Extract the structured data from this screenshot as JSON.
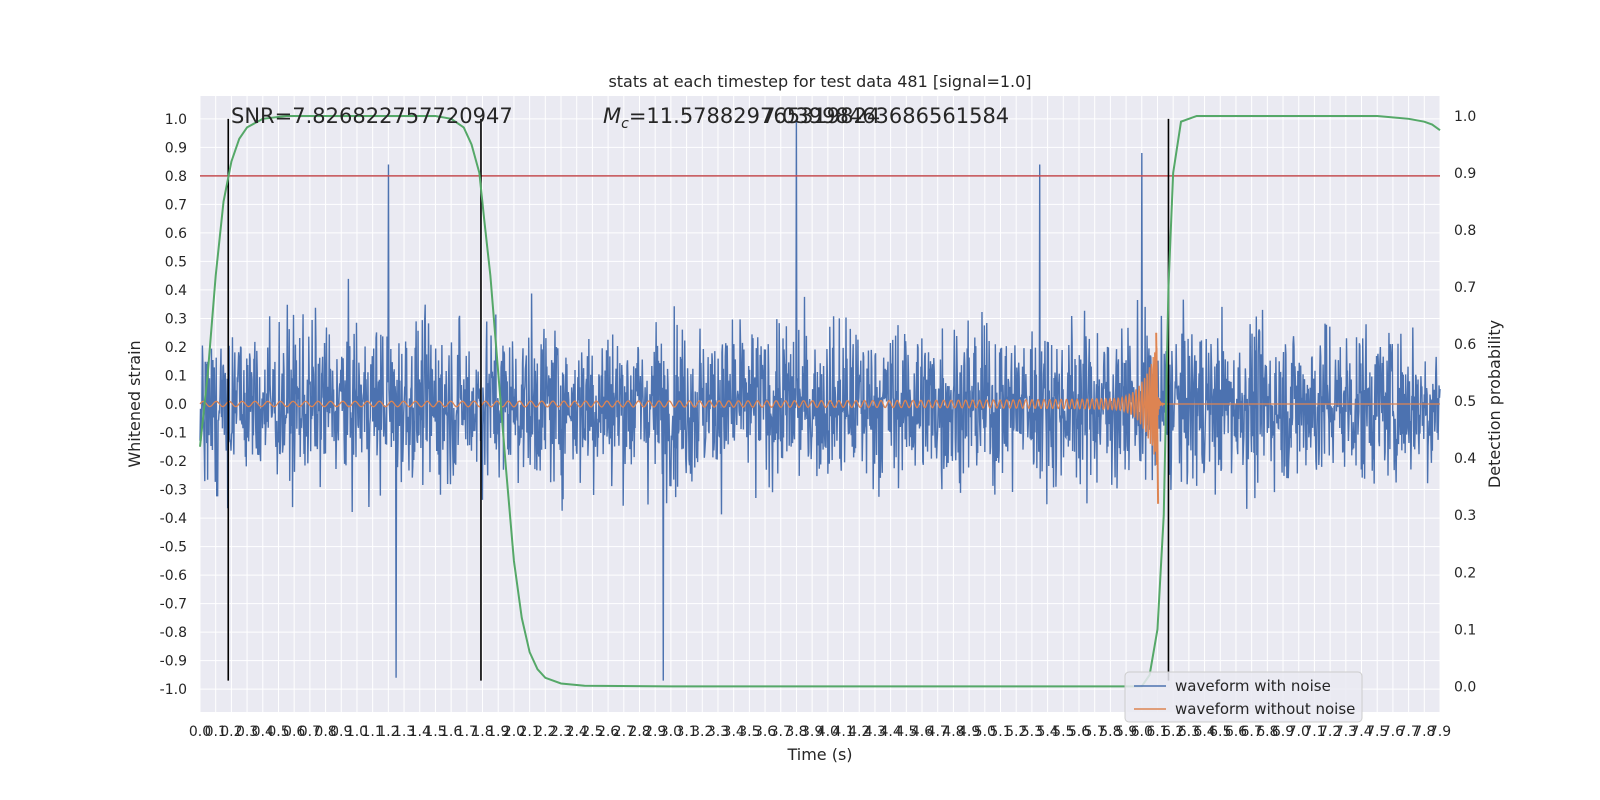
{
  "chart_data": {
    "type": "line",
    "title": "stats at each timestep for test data 481 [signal=1.0]",
    "xlabel": "Time (s)",
    "ylabel": "Whitened strain",
    "ylabel_right": "Detection probability",
    "xlim": [
      0.0,
      7.9
    ],
    "ylim": [
      -1.08,
      1.08
    ],
    "ylim_right": [
      -0.045,
      1.035
    ],
    "x_ticks": [
      "0.0",
      "0.1",
      "0.2",
      "0.3",
      "0.4",
      "0.5",
      "0.6",
      "0.7",
      "0.8",
      "0.9",
      "1.0",
      "1.1",
      "1.2",
      "1.3",
      "1.4",
      "1.5",
      "1.6",
      "1.7",
      "1.8",
      "1.9",
      "2.0",
      "2.1",
      "2.2",
      "2.3",
      "2.4",
      "2.5",
      "2.6",
      "2.7",
      "2.8",
      "2.9",
      "3.0",
      "3.1",
      "3.2",
      "3.3",
      "3.4",
      "3.5",
      "3.6",
      "3.7",
      "3.8",
      "3.9",
      "4.0",
      "4.1",
      "4.2",
      "4.3",
      "4.4",
      "4.5",
      "4.6",
      "4.7",
      "4.8",
      "4.9",
      "5.0",
      "5.1",
      "5.2",
      "5.3",
      "5.4",
      "5.5",
      "5.6",
      "5.7",
      "5.8",
      "5.9",
      "6.0",
      "6.1",
      "6.2",
      "6.3",
      "6.4",
      "6.5",
      "6.6",
      "6.7",
      "6.8",
      "6.9",
      "7.0",
      "7.1",
      "7.2",
      "7.3",
      "7.4",
      "7.5",
      "7.6",
      "7.7",
      "7.8",
      "7.9"
    ],
    "y_ticks": [
      "-1.0",
      "-0.9",
      "-0.8",
      "-0.7",
      "-0.6",
      "-0.5",
      "-0.4",
      "-0.3",
      "-0.2",
      "-0.1",
      "0.0",
      "0.1",
      "0.2",
      "0.3",
      "0.4",
      "0.5",
      "0.6",
      "0.7",
      "0.8",
      "0.9",
      "1.0"
    ],
    "y_ticks_right": [
      "0.0",
      "0.1",
      "0.2",
      "0.3",
      "0.4",
      "0.5",
      "0.6",
      "0.7",
      "0.8",
      "0.9",
      "1.0"
    ],
    "annotations": {
      "snr": "SNR=7.826822757720947",
      "mc": "=11.578829765319824",
      "mc_symbol": "M",
      "mc_subscript": "c",
      "mc_overlap": "7.03998463686561584"
    },
    "threshold_line": {
      "y": 0.8,
      "color": "#c44e52"
    },
    "vertical_lines": [
      0.18,
      1.79,
      6.17
    ],
    "series": [
      {
        "name": "waveform with noise",
        "color": "#4c72b0",
        "kind": "noise",
        "envelope": 0.42,
        "peak_samples": [
          [
            1.2,
            0.84
          ],
          [
            3.8,
            1.0
          ],
          [
            5.35,
            0.84
          ],
          [
            6.0,
            0.88
          ],
          [
            2.95,
            -0.97
          ],
          [
            1.25,
            -0.96
          ]
        ]
      },
      {
        "name": "waveform without noise",
        "color": "#dd8452",
        "kind": "chirp",
        "merger_time": 6.1,
        "peak_amplitude": 0.25,
        "trough_amplitude": -0.35
      },
      {
        "name": "",
        "color": "#55a868",
        "kind": "probability",
        "axis": "right",
        "points": [
          [
            0.0,
            0.42
          ],
          [
            0.05,
            0.55
          ],
          [
            0.1,
            0.72
          ],
          [
            0.15,
            0.85
          ],
          [
            0.2,
            0.92
          ],
          [
            0.25,
            0.96
          ],
          [
            0.3,
            0.98
          ],
          [
            0.4,
            0.995
          ],
          [
            0.55,
            1.0
          ],
          [
            1.0,
            1.0
          ],
          [
            1.5,
            1.0
          ],
          [
            1.6,
            0.995
          ],
          [
            1.68,
            0.98
          ],
          [
            1.73,
            0.95
          ],
          [
            1.78,
            0.9
          ],
          [
            1.81,
            0.82
          ],
          [
            1.85,
            0.72
          ],
          [
            1.9,
            0.55
          ],
          [
            1.95,
            0.38
          ],
          [
            2.0,
            0.22
          ],
          [
            2.05,
            0.12
          ],
          [
            2.1,
            0.06
          ],
          [
            2.15,
            0.03
          ],
          [
            2.2,
            0.015
          ],
          [
            2.3,
            0.005
          ],
          [
            2.45,
            0.001
          ],
          [
            3.0,
            0.0
          ],
          [
            5.5,
            0.0
          ],
          [
            6.0,
            0.0
          ],
          [
            6.05,
            0.02
          ],
          [
            6.1,
            0.1
          ],
          [
            6.14,
            0.3
          ],
          [
            6.17,
            0.7
          ],
          [
            6.2,
            0.9
          ],
          [
            6.25,
            0.99
          ],
          [
            6.35,
            1.0
          ],
          [
            7.5,
            1.0
          ],
          [
            7.7,
            0.995
          ],
          [
            7.8,
            0.99
          ],
          [
            7.85,
            0.985
          ],
          [
            7.9,
            0.975
          ]
        ]
      }
    ],
    "legend": {
      "placement": "lower-right",
      "entries": [
        "waveform with noise",
        "waveform without noise"
      ]
    },
    "grid": true
  }
}
